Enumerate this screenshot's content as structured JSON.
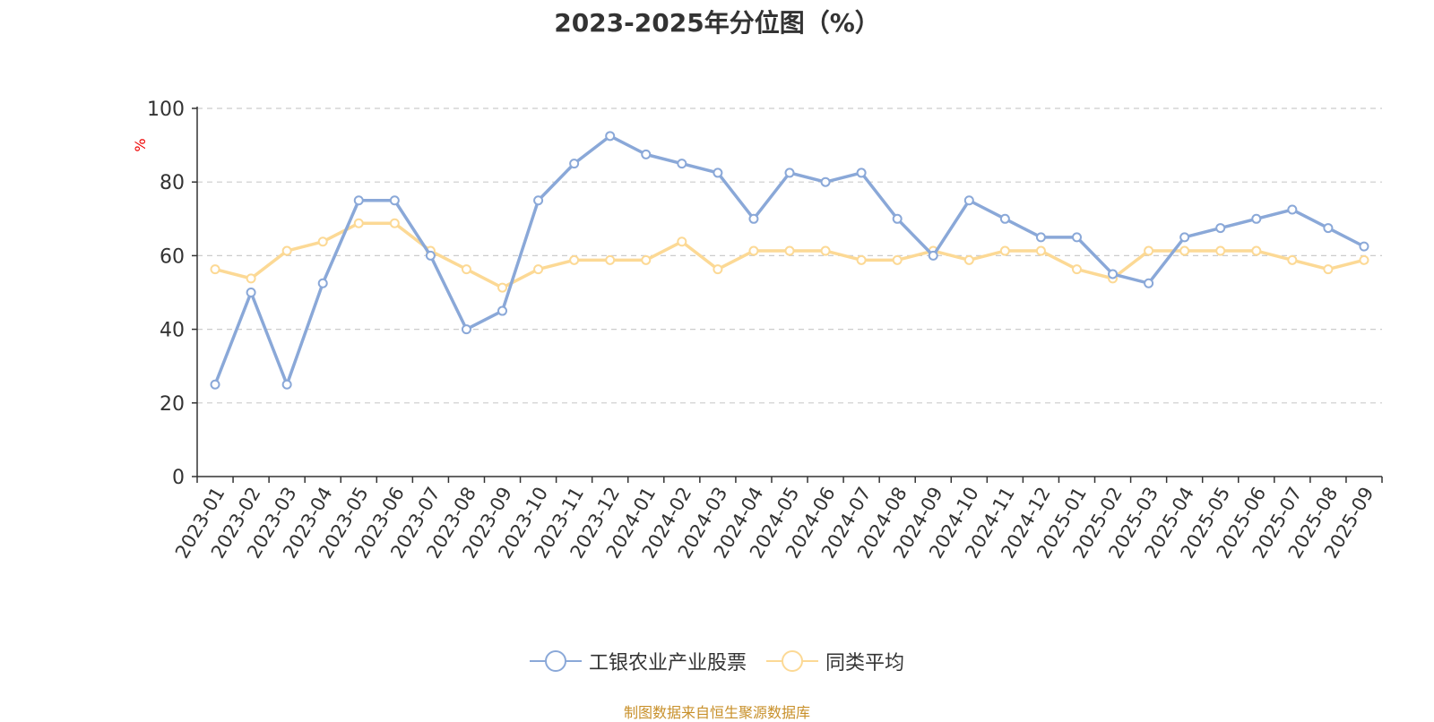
{
  "page": {
    "title": "2023-2025年分位图（%）",
    "footer": "制图数据来自恒生聚源数据库"
  },
  "colors": {
    "series1": "#8aa8d8",
    "series2": "#fcd995",
    "axis": "#333333",
    "grid": "#cccccc",
    "unit": "#ee0000"
  },
  "chart_data": {
    "type": "line",
    "title": "2023-2025年分位图（%）",
    "ylabel": "%",
    "ylim": [
      0,
      100
    ],
    "yticks": [
      0,
      20,
      40,
      60,
      80,
      100
    ],
    "grid": true,
    "legend_position": "bottom",
    "categories": [
      "2023-01",
      "2023-02",
      "2023-03",
      "2023-04",
      "2023-05",
      "2023-06",
      "2023-07",
      "2023-08",
      "2023-09",
      "2023-10",
      "2023-11",
      "2023-12",
      "2024-01",
      "2024-02",
      "2024-03",
      "2024-04",
      "2024-05",
      "2024-06",
      "2024-07",
      "2024-08",
      "2024-09",
      "2024-10",
      "2024-11",
      "2024-12",
      "2025-01",
      "2025-02",
      "2025-03",
      "2025-04",
      "2025-05",
      "2025-06",
      "2025-07",
      "2025-08",
      "2025-09"
    ],
    "series": [
      {
        "name": "工银农业产业股票",
        "color": "#8aa8d8",
        "values": [
          25,
          50,
          25,
          52.5,
          75,
          75,
          60,
          40,
          45,
          75,
          85,
          92.5,
          87.5,
          85,
          82.5,
          70,
          82.5,
          80,
          82.5,
          70,
          60,
          75,
          70,
          65,
          65,
          55,
          52.5,
          65,
          67.5,
          70,
          72.5,
          67.5,
          62.5
        ]
      },
      {
        "name": "同类平均",
        "color": "#fcd995",
        "values": [
          56.3,
          53.8,
          61.3,
          63.8,
          68.8,
          68.8,
          61.3,
          56.3,
          51.3,
          56.3,
          58.8,
          58.8,
          58.8,
          63.8,
          56.3,
          61.3,
          61.3,
          61.3,
          58.8,
          58.8,
          61.3,
          58.8,
          61.3,
          61.3,
          56.3,
          53.8,
          61.3,
          61.3,
          61.3,
          61.3,
          58.8,
          56.3,
          58.8
        ]
      }
    ]
  }
}
